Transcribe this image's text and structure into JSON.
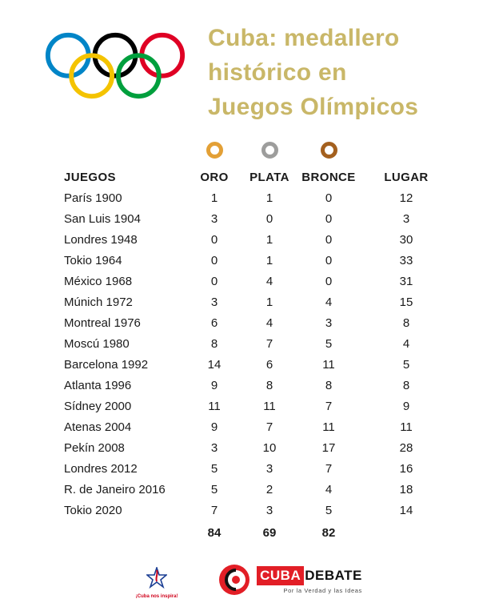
{
  "title": {
    "lines": [
      "Cuba: medallero",
      "histórico en",
      "Juegos Olímpicos"
    ],
    "color": "#c9b768"
  },
  "icons": {
    "olympic_rings_colors": [
      "#0085c7",
      "#000000",
      "#df0024",
      "#f4c300",
      "#009f3d"
    ],
    "medal_gold_color": "#e3a036",
    "medal_silver_color": "#9d9d9c",
    "medal_bronze_color": "#a4601e"
  },
  "chart_data": {
    "type": "table",
    "title": "Cuba: medallero histórico en Juegos Olímpicos",
    "columns": [
      "JUEGOS",
      "ORO",
      "PLATA",
      "BRONCE",
      "LUGAR"
    ],
    "rows": [
      [
        "París 1900",
        1,
        1,
        0,
        12
      ],
      [
        "San Luis 1904",
        3,
        0,
        0,
        3
      ],
      [
        "Londres 1948",
        0,
        1,
        0,
        30
      ],
      [
        "Tokio 1964",
        0,
        1,
        0,
        33
      ],
      [
        "México 1968",
        0,
        4,
        0,
        31
      ],
      [
        "Múnich 1972",
        3,
        1,
        4,
        15
      ],
      [
        "Montreal 1976",
        6,
        4,
        3,
        8
      ],
      [
        "Moscú 1980",
        8,
        7,
        5,
        4
      ],
      [
        "Barcelona 1992",
        14,
        6,
        11,
        5
      ],
      [
        "Atlanta 1996",
        9,
        8,
        8,
        8
      ],
      [
        "Sídney 2000",
        11,
        11,
        7,
        9
      ],
      [
        "Atenas 2004",
        9,
        7,
        11,
        11
      ],
      [
        "Pekín 2008",
        3,
        10,
        17,
        28
      ],
      [
        "Londres 2012",
        5,
        3,
        7,
        16
      ],
      [
        "R. de Janeiro 2016",
        5,
        2,
        4,
        18
      ],
      [
        "Tokio 2020",
        7,
        3,
        5,
        14
      ]
    ],
    "totals": {
      "oro": 84,
      "plata": 69,
      "bronce": 82
    }
  },
  "footer": {
    "inspira_caption": "¡Cuba nos inspira!",
    "cubadebate_cuba": "CUBA",
    "cubadebate_debate": "DEBATE",
    "cubadebate_tagline": "Por la Verdad y las Ideas"
  }
}
